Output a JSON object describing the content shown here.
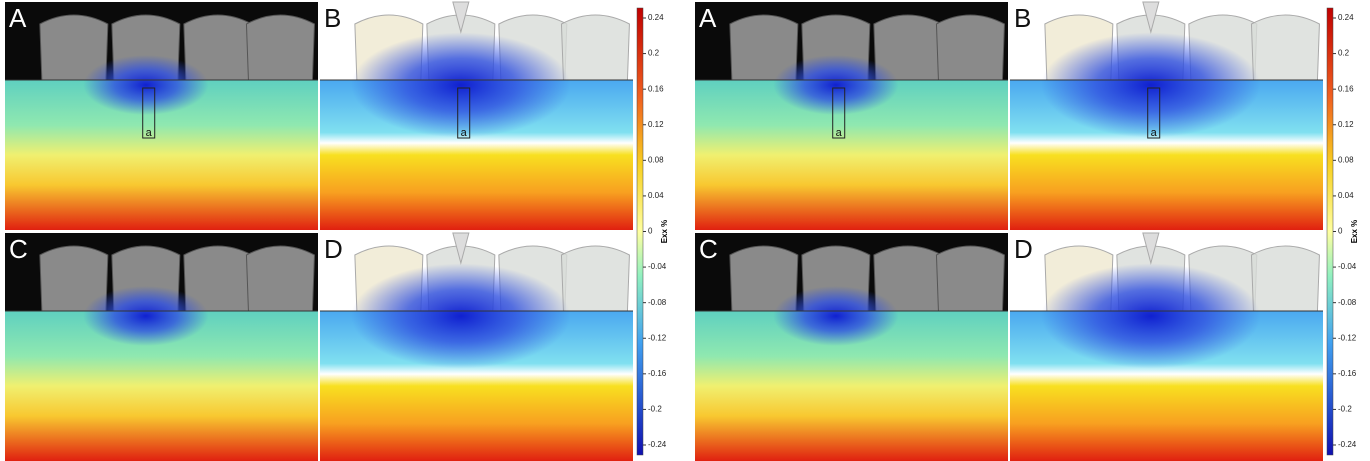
{
  "figures": [
    {
      "panels": [
        {
          "label": "A",
          "marker": "a"
        },
        {
          "label": "B",
          "marker": "a"
        },
        {
          "label": "C"
        },
        {
          "label": "D"
        }
      ],
      "colorbar": {
        "label": "Exx %",
        "ticks": [
          0.24,
          0.2,
          0.16,
          0.12,
          0.08,
          0.04,
          0,
          -0.04,
          -0.08,
          -0.12,
          -0.16,
          -0.2,
          -0.24
        ]
      }
    },
    {
      "panels": [
        {
          "label": "A",
          "marker": "a"
        },
        {
          "label": "B",
          "marker": "a"
        },
        {
          "label": "C"
        },
        {
          "label": "D"
        }
      ],
      "colorbar": {
        "label": "Exx %",
        "ticks": [
          0.24,
          0.2,
          0.16,
          0.12,
          0.08,
          0.04,
          0,
          -0.04,
          -0.08,
          -0.12,
          -0.16,
          -0.2,
          -0.24
        ]
      }
    }
  ]
}
